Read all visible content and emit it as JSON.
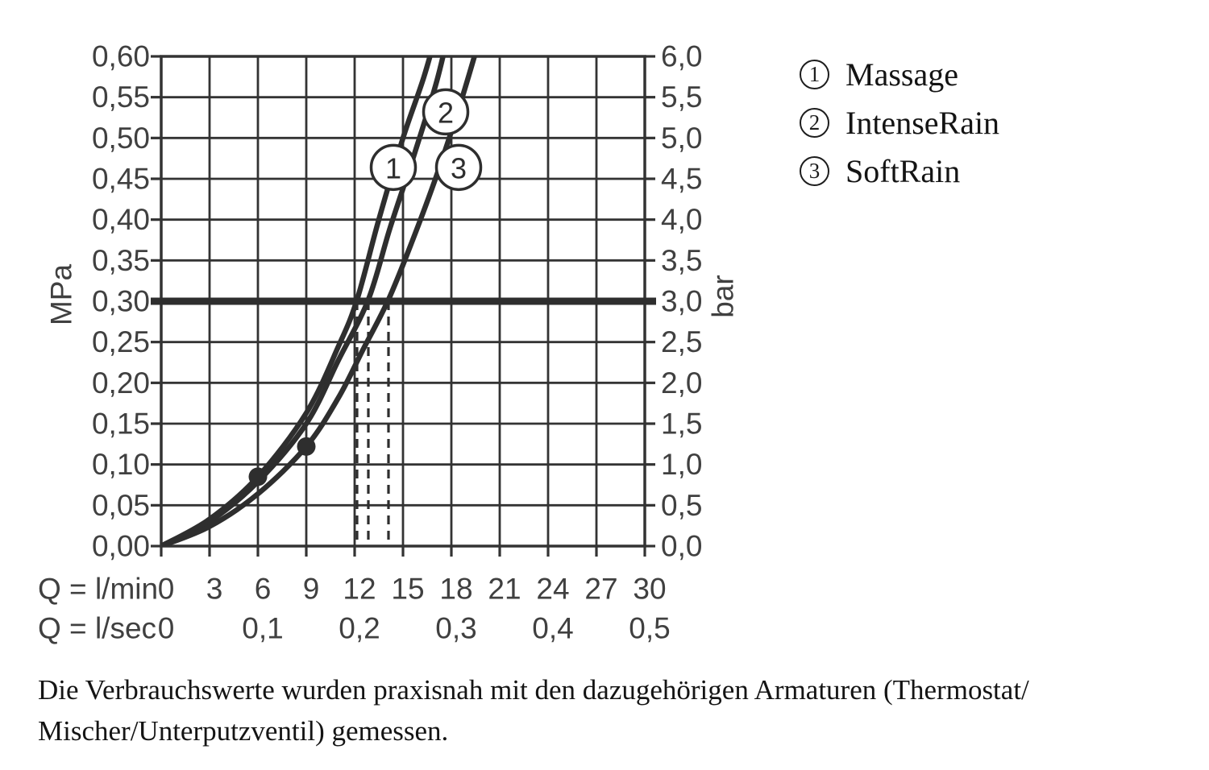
{
  "chart_data": {
    "type": "line",
    "title": "Shower flow-rate vs pressure diagram",
    "grid": true,
    "x_axis": {
      "row1_label": "Q = l/min",
      "row2_label": "Q = l/sec",
      "range": [
        0,
        30
      ],
      "grid_step_lmin": 3,
      "ticks_lmin": [
        "0",
        "3",
        "6",
        "9",
        "12",
        "15",
        "18",
        "21",
        "24",
        "27",
        "30"
      ],
      "ticks_lsec": [
        {
          "label": "0",
          "x": 0
        },
        {
          "label": "0,1",
          "x": 6
        },
        {
          "label": "0,2",
          "x": 12
        },
        {
          "label": "0,3",
          "x": 18
        },
        {
          "label": "0,4",
          "x": 24
        },
        {
          "label": "0,5",
          "x": 30
        }
      ]
    },
    "y_axis_left": {
      "label": "MPa",
      "range": [
        0,
        0.6
      ],
      "step": 0.05,
      "ticks": [
        "0,60",
        "0,55",
        "0,50",
        "0,45",
        "0,40",
        "0,35",
        "0,30",
        "0,25",
        "0,20",
        "0,15",
        "0,10",
        "0,05",
        "0,00"
      ]
    },
    "y_axis_right": {
      "label": "bar",
      "range": [
        0,
        6
      ],
      "step": 0.5,
      "ticks": [
        "6,0",
        "5,5",
        "5,0",
        "4,5",
        "4,0",
        "3,5",
        "3,0",
        "2,5",
        "2,0",
        "1,5",
        "1,0",
        "0,5",
        "0,0"
      ]
    },
    "reference_line": {
      "mpa": 0.3,
      "bar": 3.0
    },
    "dashed_drop_lines_lmin": [
      12.15,
      12.85,
      14.1
    ],
    "marker_dots": [
      {
        "x_lmin": 6,
        "y_mpa": 0.085
      },
      {
        "x_lmin": 9,
        "y_mpa": 0.122
      }
    ],
    "series": [
      {
        "id": "1",
        "name": "Massage",
        "flow_at_3bar_lmin": 12.15,
        "points": [
          [
            0,
            0
          ],
          [
            3,
            0.033
          ],
          [
            6,
            0.085
          ],
          [
            9,
            0.163
          ],
          [
            11,
            0.245
          ],
          [
            12.15,
            0.302
          ],
          [
            13.5,
            0.4
          ],
          [
            15,
            0.5
          ],
          [
            16.3,
            0.575
          ],
          [
            17.3,
            0.645
          ]
        ],
        "circle_label_at": {
          "x": 14.4,
          "y": 0.464
        }
      },
      {
        "id": "2",
        "name": "IntenseRain",
        "flow_at_3bar_lmin": 12.85,
        "points": [
          [
            0,
            0
          ],
          [
            3,
            0.03
          ],
          [
            6,
            0.079
          ],
          [
            9,
            0.15
          ],
          [
            11,
            0.228
          ],
          [
            12.85,
            0.302
          ],
          [
            14.2,
            0.39
          ],
          [
            15.7,
            0.48
          ],
          [
            17.1,
            0.57
          ],
          [
            18.0,
            0.645
          ]
        ],
        "circle_label_at": {
          "x": 17.65,
          "y": 0.532
        }
      },
      {
        "id": "3",
        "name": "SoftRain",
        "flow_at_3bar_lmin": 14.1,
        "points": [
          [
            0,
            0
          ],
          [
            3,
            0.024
          ],
          [
            6,
            0.064
          ],
          [
            9,
            0.122
          ],
          [
            11,
            0.182
          ],
          [
            12.5,
            0.24
          ],
          [
            14.1,
            0.302
          ],
          [
            15.6,
            0.375
          ],
          [
            17.1,
            0.455
          ],
          [
            18.6,
            0.545
          ],
          [
            19.8,
            0.625
          ]
        ],
        "circle_label_at": {
          "x": 18.45,
          "y": 0.464
        }
      }
    ]
  },
  "legend": {
    "items": [
      {
        "num": "1",
        "label": "Massage"
      },
      {
        "num": "2",
        "label": "IntenseRain"
      },
      {
        "num": "3",
        "label": "SoftRain"
      }
    ]
  },
  "caption": {
    "line1": "Die Verbrauchswerte wurden praxisnah mit den dazugehörigen Armaturen (Thermostat/",
    "line2": "Mischer/Unterputzventil) gemessen."
  },
  "colors": {
    "ink": "#2e2e2e",
    "grid": "#333333",
    "axis_text": "#404040",
    "serif_text": "#141414",
    "background": "#ffffff"
  }
}
